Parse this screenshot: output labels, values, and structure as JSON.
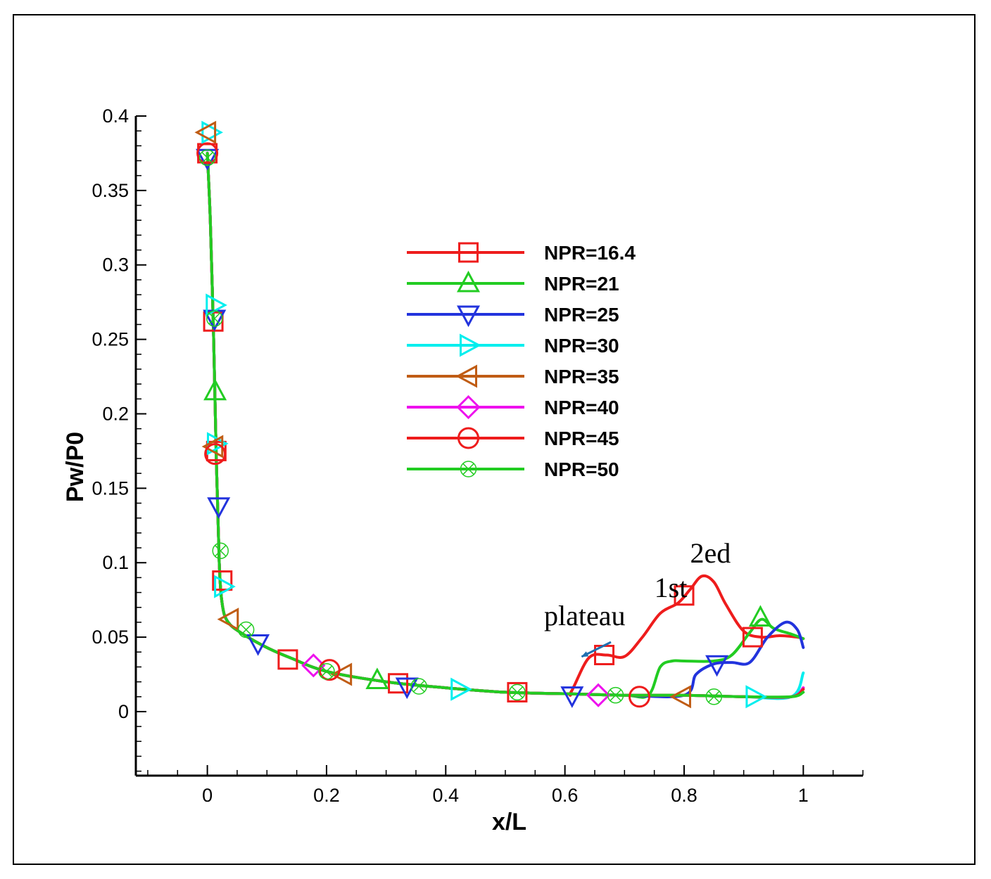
{
  "chart_data": {
    "type": "line",
    "title": "",
    "xlabel": "x/L",
    "ylabel": "Pw/P0",
    "xlim": [
      -0.12,
      1.1
    ],
    "ylim": [
      -0.043,
      0.4
    ],
    "xticks": [
      0,
      0.2,
      0.4,
      0.6,
      0.8,
      1
    ],
    "xtick_labels": [
      "0",
      "0.2",
      "0.4",
      "0.6",
      "0.8",
      "1"
    ],
    "yticks": [
      0,
      0.05,
      0.1,
      0.15,
      0.2,
      0.25,
      0.3,
      0.35,
      0.4
    ],
    "ytick_labels": [
      "0",
      "0.05",
      "0.1",
      "0.15",
      "0.2",
      "0.25",
      "0.3",
      "0.35",
      "0.4"
    ],
    "legend_position": "center-right",
    "series": [
      {
        "name": "NPR=16.4",
        "color": "#ee1c1c",
        "marker": "square",
        "x": [
          0,
          0.005,
          0.01,
          0.015,
          0.02,
          0.025,
          0.035,
          0.06,
          0.1,
          0.14,
          0.2,
          0.3,
          0.4,
          0.5,
          0.6,
          0.61,
          0.64,
          0.67,
          0.7,
          0.73,
          0.76,
          0.79,
          0.81,
          0.83,
          0.85,
          0.87,
          0.9,
          0.93,
          0.96,
          0.99,
          1.0
        ],
        "y": [
          0.375,
          0.33,
          0.26,
          0.17,
          0.1,
          0.072,
          0.06,
          0.052,
          0.043,
          0.036,
          0.027,
          0.02,
          0.016,
          0.013,
          0.012,
          0.013,
          0.036,
          0.038,
          0.037,
          0.05,
          0.066,
          0.073,
          0.082,
          0.091,
          0.087,
          0.072,
          0.054,
          0.05,
          0.051,
          0.05,
          0.049
        ],
        "marker_x": [
          0.0,
          0.01,
          0.015,
          0.025,
          0.135,
          0.32,
          0.52,
          0.666,
          0.8,
          0.915
        ],
        "marker_y": [
          0.375,
          0.262,
          0.175,
          0.088,
          0.035,
          0.019,
          0.013,
          0.038,
          0.078,
          0.05
        ]
      },
      {
        "name": "NPR=21",
        "color": "#22cc22",
        "marker": "triangle-up",
        "x": [
          0,
          0.005,
          0.01,
          0.015,
          0.02,
          0.025,
          0.035,
          0.06,
          0.1,
          0.14,
          0.2,
          0.3,
          0.4,
          0.5,
          0.6,
          0.7,
          0.74,
          0.76,
          0.78,
          0.8,
          0.85,
          0.88,
          0.91,
          0.93,
          0.95,
          0.98,
          1.0
        ],
        "y": [
          0.375,
          0.33,
          0.26,
          0.17,
          0.1,
          0.072,
          0.06,
          0.052,
          0.043,
          0.036,
          0.027,
          0.02,
          0.016,
          0.013,
          0.012,
          0.011,
          0.011,
          0.03,
          0.034,
          0.034,
          0.034,
          0.038,
          0.053,
          0.062,
          0.056,
          0.052,
          0.049
        ],
        "marker_x": [
          0.013,
          0.285,
          0.928
        ],
        "marker_y": [
          0.215,
          0.021,
          0.063
        ]
      },
      {
        "name": "NPR=25",
        "color": "#2233dd",
        "marker": "triangle-down",
        "x": [
          0,
          0.005,
          0.01,
          0.015,
          0.02,
          0.025,
          0.035,
          0.06,
          0.1,
          0.14,
          0.2,
          0.3,
          0.4,
          0.5,
          0.6,
          0.7,
          0.8,
          0.82,
          0.85,
          0.88,
          0.91,
          0.94,
          0.97,
          0.99,
          1.0
        ],
        "y": [
          0.375,
          0.33,
          0.26,
          0.17,
          0.1,
          0.072,
          0.06,
          0.052,
          0.043,
          0.036,
          0.027,
          0.02,
          0.016,
          0.013,
          0.012,
          0.011,
          0.011,
          0.025,
          0.032,
          0.033,
          0.033,
          0.05,
          0.06,
          0.055,
          0.043
        ],
        "marker_x": [
          0.0,
          0.012,
          0.019,
          0.085,
          0.335,
          0.612,
          0.855
        ],
        "marker_y": [
          0.372,
          0.264,
          0.138,
          0.046,
          0.017,
          0.011,
          0.032
        ]
      },
      {
        "name": "NPR=30",
        "color": "#00eeee",
        "marker": "triangle-right",
        "x": [
          0,
          0.005,
          0.01,
          0.015,
          0.02,
          0.025,
          0.035,
          0.06,
          0.1,
          0.14,
          0.2,
          0.3,
          0.4,
          0.5,
          0.6,
          0.7,
          0.8,
          0.9,
          0.98,
          1.0
        ],
        "y": [
          0.375,
          0.33,
          0.26,
          0.17,
          0.1,
          0.072,
          0.06,
          0.052,
          0.043,
          0.036,
          0.027,
          0.02,
          0.016,
          0.013,
          0.012,
          0.011,
          0.011,
          0.01,
          0.01,
          0.026
        ],
        "marker_x": [
          0.005,
          0.012,
          0.014,
          0.026,
          0.423,
          0.918
        ],
        "marker_y": [
          0.389,
          0.273,
          0.18,
          0.084,
          0.015,
          0.01
        ]
      },
      {
        "name": "NPR=35",
        "color": "#c05c14",
        "marker": "triangle-left",
        "x": [
          0,
          0.005,
          0.01,
          0.015,
          0.02,
          0.025,
          0.035,
          0.06,
          0.1,
          0.14,
          0.2,
          0.3,
          0.4,
          0.5,
          0.6,
          0.7,
          0.8,
          0.9,
          0.98,
          1.0
        ],
        "y": [
          0.375,
          0.33,
          0.26,
          0.17,
          0.1,
          0.072,
          0.06,
          0.052,
          0.043,
          0.036,
          0.027,
          0.02,
          0.016,
          0.013,
          0.012,
          0.011,
          0.011,
          0.01,
          0.01,
          0.016
        ],
        "marker_x": [
          0.0,
          0.012,
          0.038,
          0.228,
          0.797
        ],
        "marker_y": [
          0.389,
          0.178,
          0.062,
          0.025,
          0.01
        ]
      },
      {
        "name": "NPR=40",
        "color": "#ee11ee",
        "marker": "diamond",
        "x": [
          0,
          0.005,
          0.01,
          0.015,
          0.02,
          0.025,
          0.035,
          0.06,
          0.1,
          0.14,
          0.2,
          0.3,
          0.4,
          0.5,
          0.6,
          0.7,
          0.8,
          0.9,
          0.98,
          1.0
        ],
        "y": [
          0.375,
          0.33,
          0.26,
          0.17,
          0.1,
          0.072,
          0.06,
          0.052,
          0.043,
          0.036,
          0.027,
          0.02,
          0.016,
          0.013,
          0.012,
          0.011,
          0.011,
          0.01,
          0.01,
          0.016
        ],
        "marker_x": [
          0.178,
          0.656
        ],
        "marker_y": [
          0.031,
          0.011
        ]
      },
      {
        "name": "NPR=45",
        "color": "#ee1c1c",
        "marker": "circle",
        "x": [
          0,
          0.005,
          0.01,
          0.015,
          0.02,
          0.025,
          0.035,
          0.06,
          0.1,
          0.14,
          0.2,
          0.3,
          0.4,
          0.5,
          0.6,
          0.7,
          0.8,
          0.9,
          0.98,
          1.0
        ],
        "y": [
          0.375,
          0.33,
          0.26,
          0.17,
          0.1,
          0.072,
          0.06,
          0.052,
          0.043,
          0.036,
          0.027,
          0.02,
          0.016,
          0.013,
          0.012,
          0.011,
          0.011,
          0.01,
          0.01,
          0.015
        ],
        "marker_x": [
          0.0,
          0.013,
          0.205,
          0.725
        ],
        "marker_y": [
          0.375,
          0.173,
          0.028,
          0.01
        ]
      },
      {
        "name": "NPR=50",
        "color": "#22cc22",
        "marker": "circle-x",
        "x": [
          0,
          0.005,
          0.01,
          0.015,
          0.02,
          0.025,
          0.035,
          0.06,
          0.1,
          0.14,
          0.2,
          0.3,
          0.4,
          0.5,
          0.6,
          0.7,
          0.8,
          0.9,
          0.98,
          1.0
        ],
        "y": [
          0.375,
          0.33,
          0.26,
          0.17,
          0.1,
          0.072,
          0.06,
          0.052,
          0.043,
          0.036,
          0.027,
          0.02,
          0.016,
          0.013,
          0.012,
          0.011,
          0.011,
          0.01,
          0.01,
          0.013
        ],
        "marker_x": [
          0.0,
          0.012,
          0.022,
          0.065,
          0.2,
          0.355,
          0.52,
          0.685,
          0.85
        ],
        "marker_y": [
          0.372,
          0.264,
          0.108,
          0.055,
          0.027,
          0.017,
          0.013,
          0.011,
          0.01
        ]
      }
    ],
    "annotations": [
      {
        "text": "2ed",
        "x": 0.81,
        "y": 0.1
      },
      {
        "text": "1st",
        "x": 0.75,
        "y": 0.077
      },
      {
        "text": "plateau",
        "x": 0.565,
        "y": 0.058,
        "arrow_to_x": 0.64,
        "arrow_to_y": 0.035
      }
    ]
  }
}
